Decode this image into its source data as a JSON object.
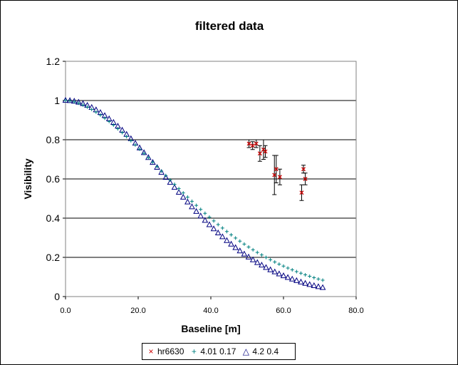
{
  "chart_data": {
    "type": "scatter",
    "title": "filtered data",
    "xlabel": "Baseline [m]",
    "ylabel": "Visibility",
    "xlim": [
      0,
      80
    ],
    "ylim": [
      0,
      1.2
    ],
    "x_ticks": [
      "0.0",
      "20.0",
      "40.0",
      "60.0",
      "80.0"
    ],
    "y_ticks": [
      "0",
      "0.2",
      "0.4",
      "0.6",
      "0.8",
      "1",
      "1.2"
    ],
    "grid": "horizontal",
    "legend_position": "bottom",
    "series": [
      {
        "name": "hr6630",
        "marker": "x",
        "color": "#cc0000",
        "points": [
          {
            "x": 50.5,
            "y": 0.78,
            "err": 0.02
          },
          {
            "x": 51.5,
            "y": 0.77,
            "err": 0.02
          },
          {
            "x": 52.5,
            "y": 0.78,
            "err": 0.02
          },
          {
            "x": 53.5,
            "y": 0.73,
            "err": 0.04
          },
          {
            "x": 54.5,
            "y": 0.75,
            "err": 0.05
          },
          {
            "x": 55.0,
            "y": 0.74,
            "err": 0.03
          },
          {
            "x": 57.5,
            "y": 0.62,
            "err": 0.1
          },
          {
            "x": 58.0,
            "y": 0.65,
            "err": 0.07
          },
          {
            "x": 59.0,
            "y": 0.61,
            "err": 0.04
          },
          {
            "x": 65.0,
            "y": 0.53,
            "err": 0.04
          },
          {
            "x": 65.5,
            "y": 0.65,
            "err": 0.02
          },
          {
            "x": 66.0,
            "y": 0.6,
            "err": 0.03
          }
        ]
      },
      {
        "name": "4.01 0.17",
        "marker": "+",
        "color": "#008080",
        "model": {
          "x_start": 0,
          "x_end": 71,
          "step": 1.2,
          "a": 0.0015,
          "b": 1.74
        }
      },
      {
        "name": "4.2 0.4",
        "marker": "triangle",
        "color": "#000080",
        "model": {
          "x_start": 0,
          "x_end": 71,
          "step": 1.2,
          "a": 0.0008,
          "b": 1.94
        }
      }
    ]
  },
  "colors": {
    "grid": "#000000",
    "plot_border": "#808080",
    "errorbar": "#000000"
  }
}
